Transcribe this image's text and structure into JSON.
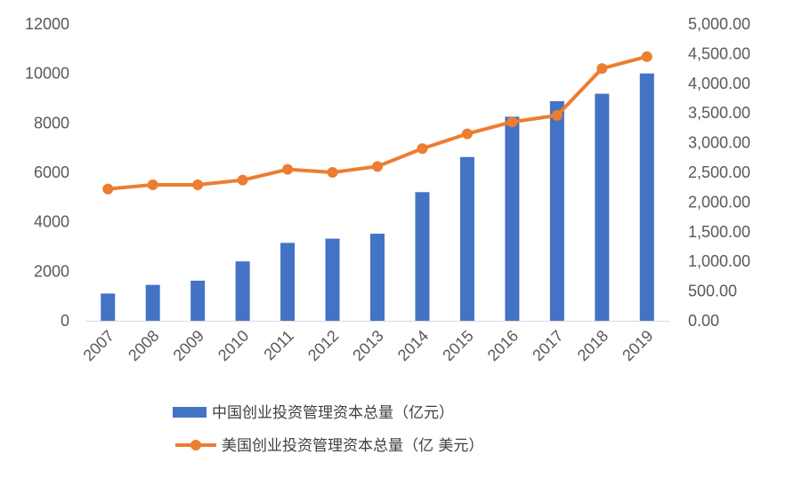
{
  "chart_data": {
    "type": "bar+line",
    "categories": [
      "2007",
      "2008",
      "2009",
      "2010",
      "2011",
      "2012",
      "2013",
      "2014",
      "2015",
      "2016",
      "2017",
      "2018",
      "2019"
    ],
    "series": [
      {
        "name": "中国创业投资管理资本总量（亿元）",
        "type": "bar",
        "axis": "left",
        "color": "#4472C4",
        "values": [
          1100,
          1450,
          1620,
          2400,
          3150,
          3320,
          3520,
          5200,
          6620,
          8250,
          8880,
          9180,
          10000
        ]
      },
      {
        "name": "美国创业投资管理资本总量（亿 美元）",
        "type": "line",
        "axis": "right",
        "color": "#ED7D31",
        "values": [
          2220,
          2290,
          2290,
          2370,
          2550,
          2500,
          2600,
          2900,
          3150,
          3350,
          3460,
          4250,
          4450
        ]
      }
    ],
    "y_left": {
      "min": 0,
      "max": 12000,
      "step": 2000,
      "tick_labels": [
        "0",
        "2000",
        "4000",
        "6000",
        "8000",
        "10000",
        "12000"
      ]
    },
    "y_right": {
      "min": 0,
      "max": 5000,
      "step": 500,
      "tick_labels": [
        "0.00",
        "500.00",
        "1,000.00",
        "1,500.00",
        "2,000.00",
        "2,500.00",
        "3,000.00",
        "3,500.00",
        "4,000.00",
        "4,500.00",
        "5,000.00"
      ]
    },
    "grid": false,
    "legend_position": "bottom"
  }
}
